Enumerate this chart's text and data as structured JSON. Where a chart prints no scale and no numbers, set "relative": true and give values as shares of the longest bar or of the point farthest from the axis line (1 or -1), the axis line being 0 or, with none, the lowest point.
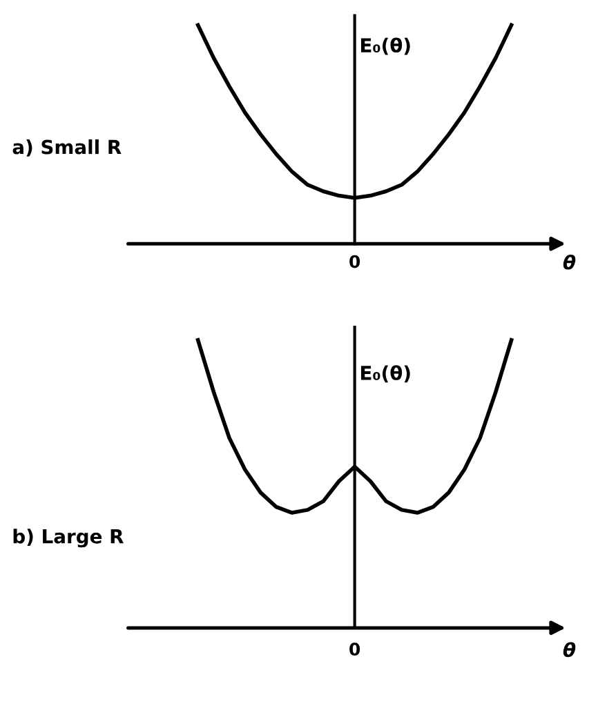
{
  "chart_data": [
    {
      "type": "line",
      "title": "a) Small R",
      "ylabel": "E₀(θ)",
      "xlabel": "θ",
      "annotations": [
        "0"
      ],
      "relative": true,
      "categories": [
        null,
        null,
        null,
        null,
        null,
        null,
        null,
        null,
        null,
        null,
        null,
        null,
        null,
        null,
        null,
        null,
        null,
        null,
        null,
        null,
        null
      ],
      "series": [
        {
          "color": "#000000",
          "values": [
            1.0,
            0.85,
            0.72,
            0.6,
            0.5,
            0.41,
            0.33,
            0.27,
            0.24,
            0.22,
            0.21,
            0.22,
            0.24,
            0.27,
            0.33,
            0.41,
            0.5,
            0.6,
            0.72,
            0.85,
            1.0
          ]
        }
      ]
    },
    {
      "type": "line",
      "title": "b) Large R",
      "ylabel": "E₀(θ)",
      "xlabel": "θ",
      "annotations": [
        "0"
      ],
      "relative": true,
      "categories": [
        null,
        null,
        null,
        null,
        null,
        null,
        null,
        null,
        null,
        null,
        null,
        null,
        null,
        null,
        null,
        null,
        null,
        null,
        null,
        null,
        null
      ],
      "series": [
        {
          "color": "#000000",
          "values": [
            1.0,
            0.82,
            0.66,
            0.55,
            0.47,
            0.42,
            0.4,
            0.41,
            0.44,
            0.51,
            0.56,
            0.51,
            0.44,
            0.41,
            0.4,
            0.42,
            0.47,
            0.55,
            0.66,
            0.82,
            1.0
          ]
        }
      ]
    }
  ]
}
